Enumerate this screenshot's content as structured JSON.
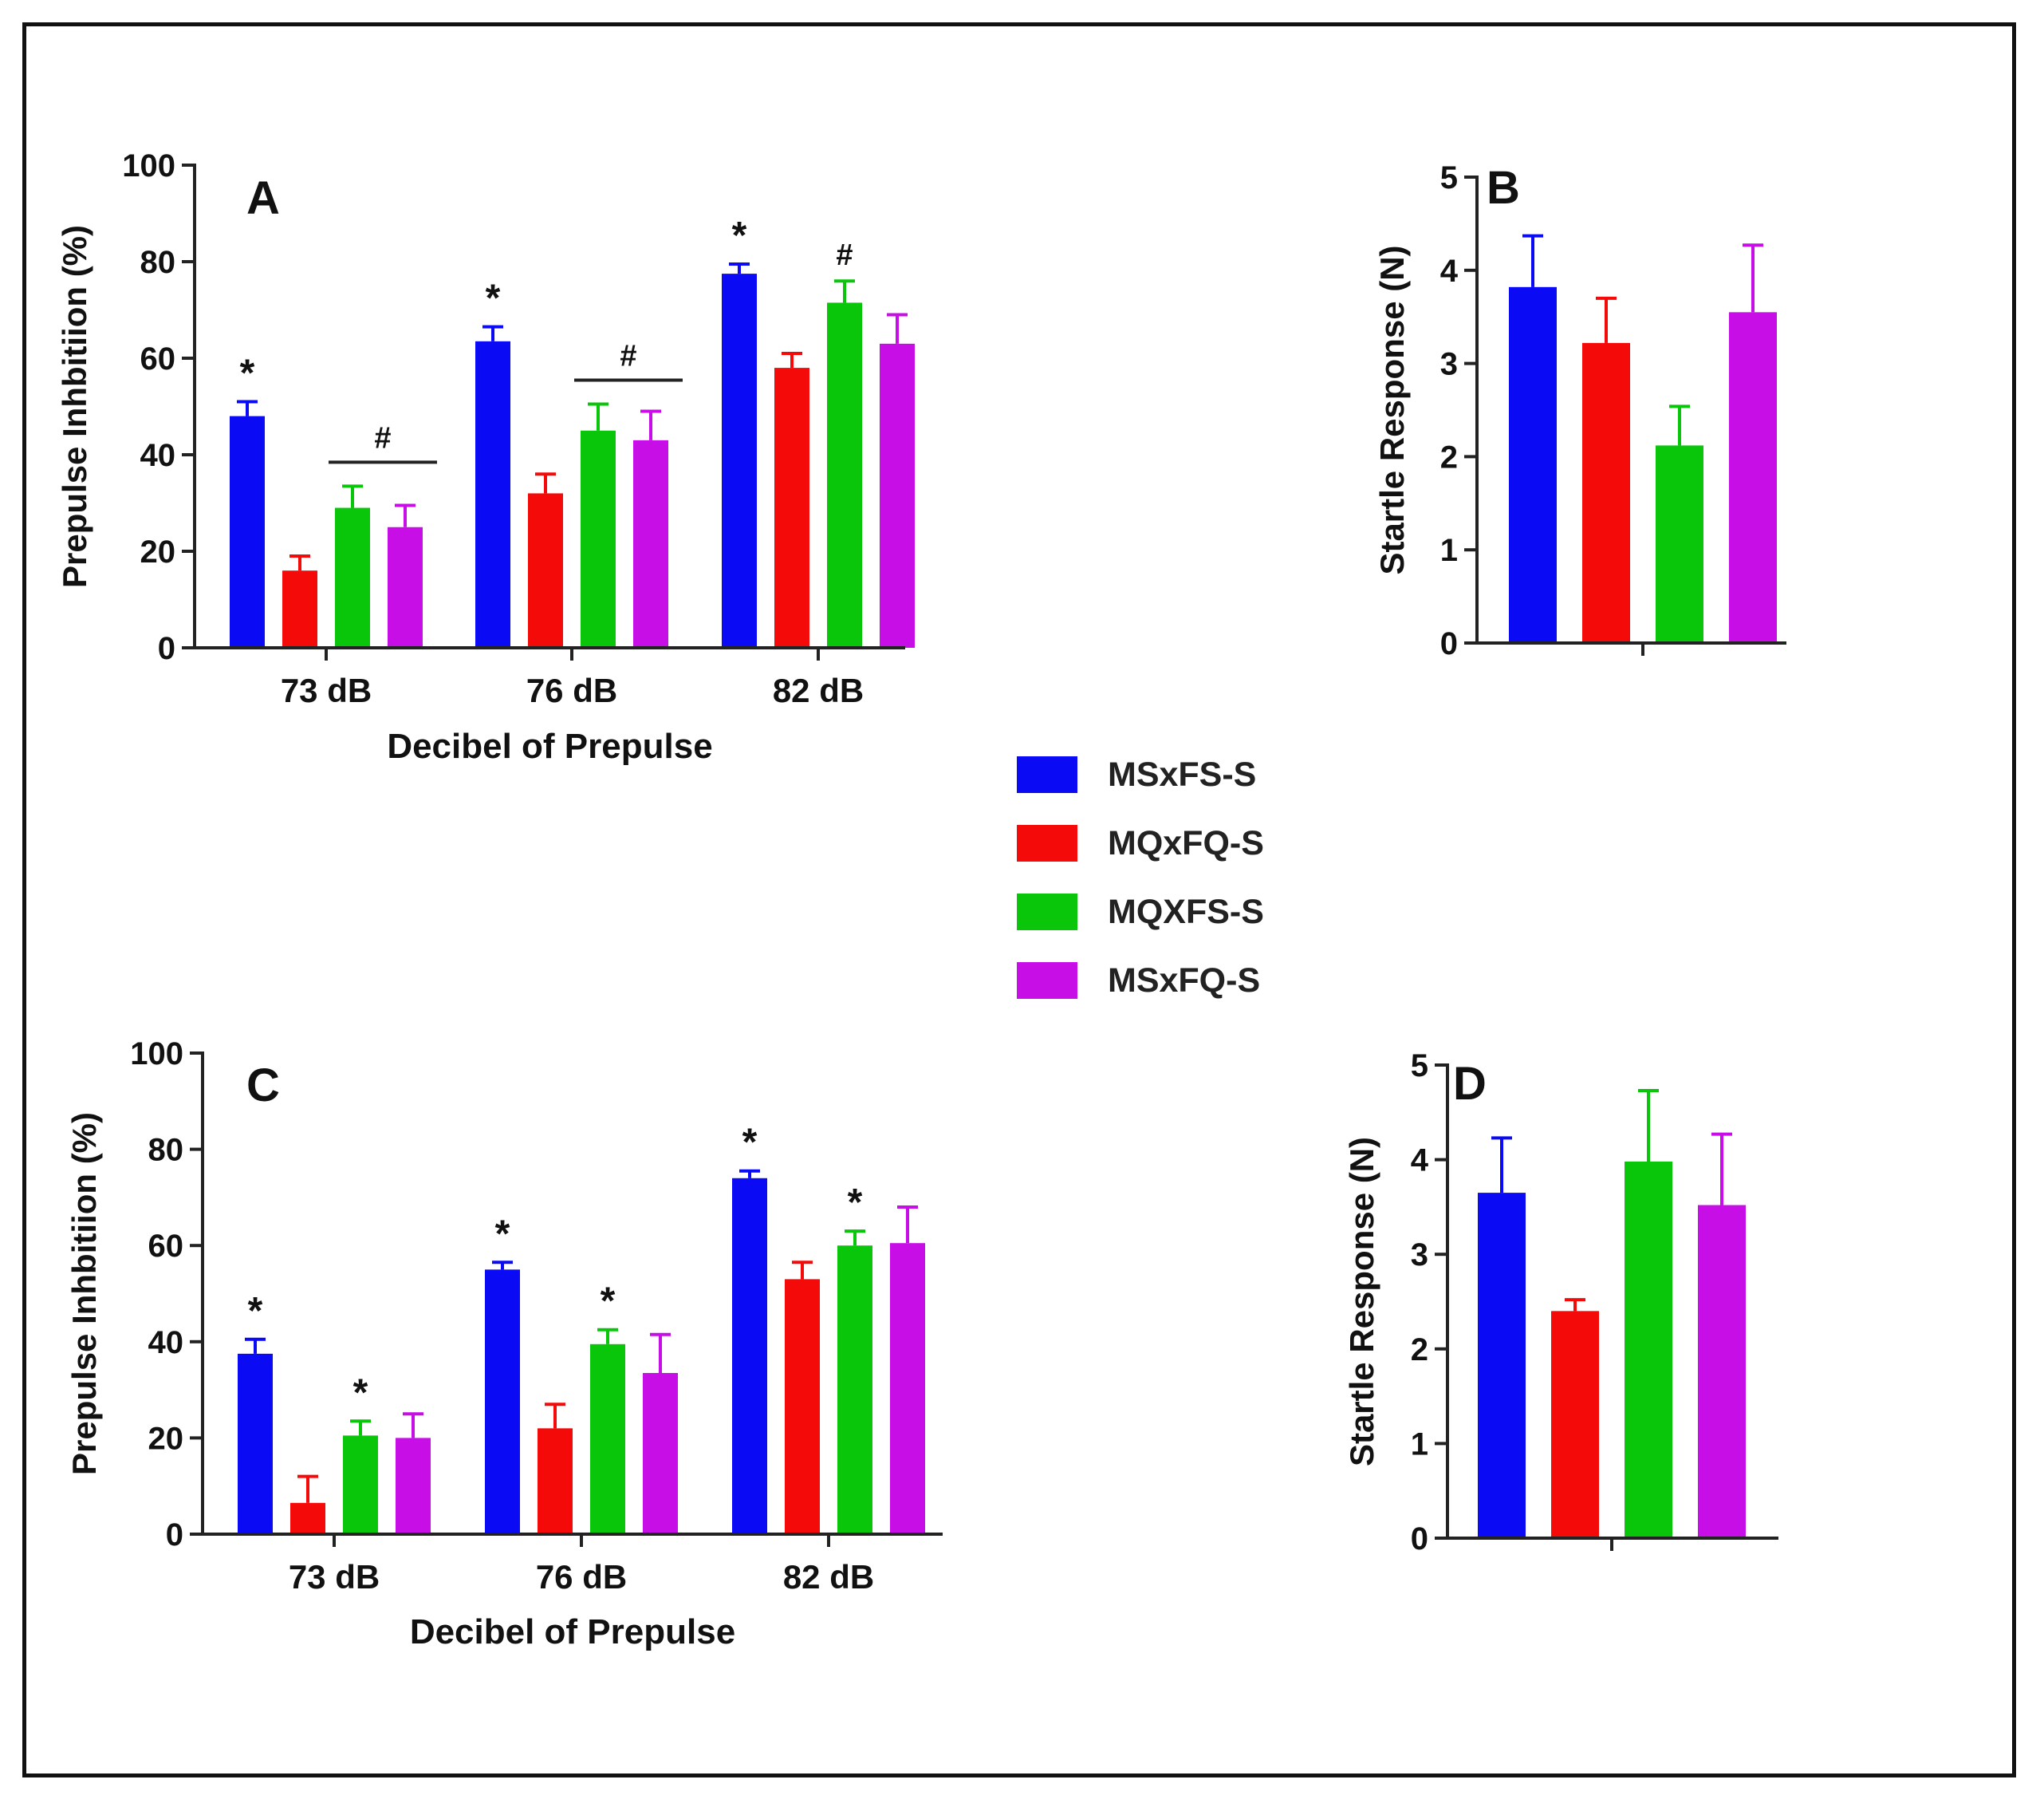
{
  "colors": {
    "MSxFS-S": "#0a0af5",
    "MQxFQ-S": "#f50a0a",
    "MQXFS-S": "#0ac60a",
    "MSxFQ-S": "#c80ee6"
  },
  "legend": {
    "items": [
      {
        "label": "MSxFS-S",
        "color": "#0a0af5"
      },
      {
        "label": "MQxFQ-S",
        "color": "#f50a0a"
      },
      {
        "label": "MQXFS-S",
        "color": "#0ac60a"
      },
      {
        "label": "MSxFQ-S",
        "color": "#c80ee6"
      }
    ]
  },
  "chart_data": [
    {
      "panel": "A",
      "type": "bar",
      "title": "",
      "xlabel": "Decibel of Prepulse",
      "ylabel": "Prepulse Inhbitiion (%)",
      "ylim": [
        0,
        100
      ],
      "yticks": [
        0,
        20,
        40,
        60,
        80,
        100
      ],
      "categories": [
        "73 dB",
        "76 dB",
        "82 dB"
      ],
      "series": [
        {
          "name": "MSxFS-S",
          "values": [
            48,
            63.5,
            77.5
          ],
          "errors": [
            3,
            3,
            2
          ]
        },
        {
          "name": "MQxFQ-S",
          "values": [
            16,
            32,
            58
          ],
          "errors": [
            3,
            4,
            3
          ]
        },
        {
          "name": "MQXFS-S",
          "values": [
            29,
            45,
            71.5
          ],
          "errors": [
            4.5,
            5.5,
            4.5
          ]
        },
        {
          "name": "MSxFQ-S",
          "values": [
            25,
            43,
            63
          ],
          "errors": [
            4.5,
            6,
            6
          ]
        }
      ],
      "annotations": [
        {
          "category": "73 dB",
          "series": "MSxFS-S",
          "text": "*"
        },
        {
          "category": "73 dB",
          "series_span": [
            "MQXFS-S",
            "MSxFQ-S"
          ],
          "text": "#"
        },
        {
          "category": "76 dB",
          "series": "MSxFS-S",
          "text": "*"
        },
        {
          "category": "76 dB",
          "series_span": [
            "MQXFS-S",
            "MSxFQ-S"
          ],
          "text": "#"
        },
        {
          "category": "82 dB",
          "series": "MSxFS-S",
          "text": "*"
        },
        {
          "category": "82 dB",
          "series": "MQXFS-S",
          "text": "#"
        }
      ]
    },
    {
      "panel": "B",
      "type": "bar",
      "title": "",
      "xlabel": "",
      "ylabel": "Startle Response (N)",
      "ylim": [
        0,
        5
      ],
      "yticks": [
        0,
        1,
        2,
        3,
        4,
        5
      ],
      "categories": [
        ""
      ],
      "series": [
        {
          "name": "MSxFS-S",
          "values": [
            3.82
          ],
          "errors": [
            0.55
          ]
        },
        {
          "name": "MQxFQ-S",
          "values": [
            3.22
          ],
          "errors": [
            0.48
          ]
        },
        {
          "name": "MQXFS-S",
          "values": [
            2.12
          ],
          "errors": [
            0.42
          ]
        },
        {
          "name": "MSxFQ-S",
          "values": [
            3.55
          ],
          "errors": [
            0.72
          ]
        }
      ],
      "annotations": []
    },
    {
      "panel": "C",
      "type": "bar",
      "title": "",
      "xlabel": "Decibel of Prepulse",
      "ylabel": "Prepulse Inhbitiion (%)",
      "ylim": [
        0,
        100
      ],
      "yticks": [
        0,
        20,
        40,
        60,
        80,
        100
      ],
      "categories": [
        "73 dB",
        "76 dB",
        "82 dB"
      ],
      "series": [
        {
          "name": "MSxFS-S",
          "values": [
            37.5,
            55,
            74
          ],
          "errors": [
            3,
            1.5,
            1.5
          ]
        },
        {
          "name": "MQxFQ-S",
          "values": [
            6.5,
            22,
            53
          ],
          "errors": [
            5.5,
            5,
            3.5
          ]
        },
        {
          "name": "MQXFS-S",
          "values": [
            20.5,
            39.5,
            60
          ],
          "errors": [
            3,
            3,
            3
          ]
        },
        {
          "name": "MSxFQ-S",
          "values": [
            20,
            33.5,
            60.5
          ],
          "errors": [
            5,
            8,
            7.5
          ]
        }
      ],
      "annotations": [
        {
          "category": "73 dB",
          "series": "MSxFS-S",
          "text": "*"
        },
        {
          "category": "73 dB",
          "series": "MQXFS-S",
          "text": "*"
        },
        {
          "category": "76 dB",
          "series": "MSxFS-S",
          "text": "*"
        },
        {
          "category": "76 dB",
          "series": "MQXFS-S",
          "text": "*"
        },
        {
          "category": "82 dB",
          "series": "MSxFS-S",
          "text": "*"
        },
        {
          "category": "82 dB",
          "series": "MQXFS-S",
          "text": "*"
        }
      ]
    },
    {
      "panel": "D",
      "type": "bar",
      "title": "",
      "xlabel": "",
      "ylabel": "Startle Response (N)",
      "ylim": [
        0,
        5
      ],
      "yticks": [
        0,
        1,
        2,
        3,
        4,
        5
      ],
      "categories": [
        ""
      ],
      "series": [
        {
          "name": "MSxFS-S",
          "values": [
            3.65
          ],
          "errors": [
            0.58
          ]
        },
        {
          "name": "MQxFQ-S",
          "values": [
            2.4
          ],
          "errors": [
            0.12
          ]
        },
        {
          "name": "MQXFS-S",
          "values": [
            3.98
          ],
          "errors": [
            0.75
          ]
        },
        {
          "name": "MSxFQ-S",
          "values": [
            3.52
          ],
          "errors": [
            0.75
          ]
        }
      ],
      "annotations": []
    }
  ]
}
